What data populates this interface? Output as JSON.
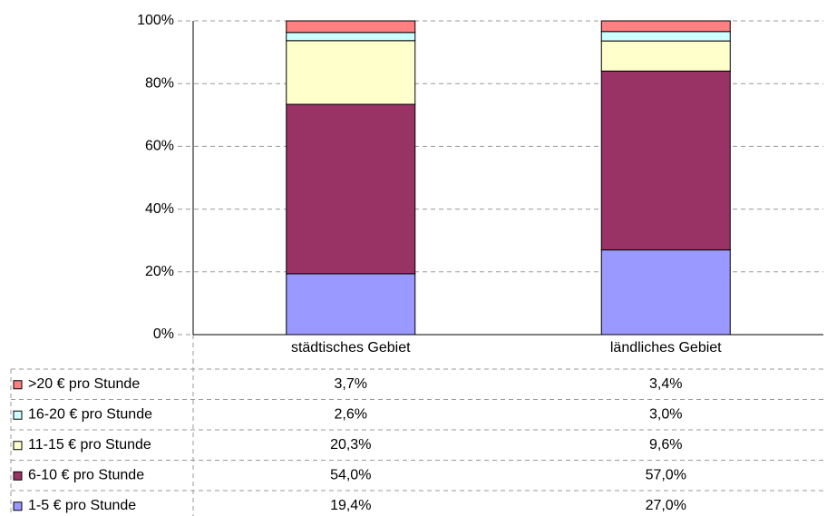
{
  "chart_data": {
    "type": "stacked-bar-table",
    "categories": [
      "städtisches Gebiet",
      "ländliches Gebiet"
    ],
    "series": [
      {
        "name": "1-5 € pro Stunde",
        "color": "#9999ff",
        "values": [
          19.4,
          27.0
        ],
        "value_labels": [
          "19,4%",
          "27,0%"
        ]
      },
      {
        "name": "6-10 € pro Stunde",
        "color": "#993366",
        "values": [
          54.0,
          57.0
        ],
        "value_labels": [
          "54,0%",
          "57,0%"
        ]
      },
      {
        "name": "11-15 € pro Stunde",
        "color": "#ffffcc",
        "values": [
          20.3,
          9.6
        ],
        "value_labels": [
          "20,3%",
          "9,6%"
        ]
      },
      {
        "name": "16-20 € pro Stunde",
        "color": "#ccffff",
        "values": [
          2.6,
          3.0
        ],
        "value_labels": [
          "2,6%",
          "3,0%"
        ]
      },
      {
        "name": ">20 € pro Stunde",
        "color": "#ff8080",
        "values": [
          3.7,
          3.4
        ],
        "value_labels": [
          "3,7%",
          "3,4%"
        ]
      }
    ],
    "ylim": [
      0,
      100
    ],
    "yticks": [
      {
        "value": 0,
        "label": "0%"
      },
      {
        "value": 20,
        "label": "20%"
      },
      {
        "value": 40,
        "label": "40%"
      },
      {
        "value": 60,
        "label": "60%"
      },
      {
        "value": 80,
        "label": "80%"
      },
      {
        "value": 100,
        "label": "100%"
      }
    ],
    "grid": true
  }
}
